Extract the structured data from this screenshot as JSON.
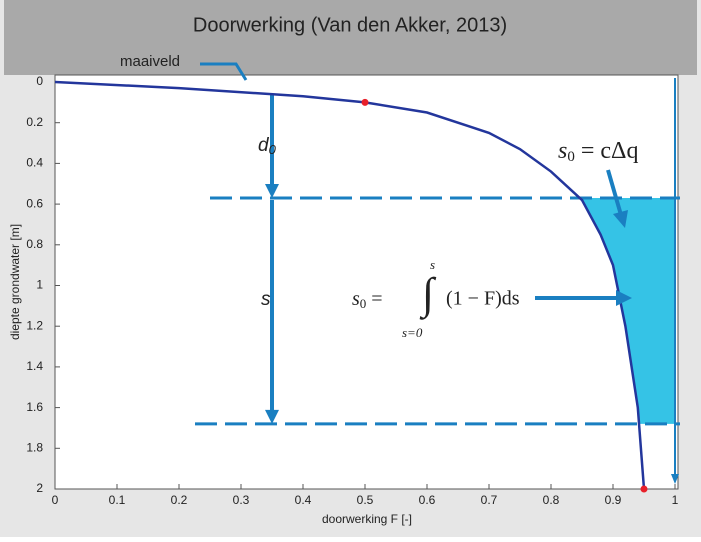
{
  "chart_data": {
    "type": "line",
    "title": "Doorwerking (Van den Akker, 2013)",
    "xlabel": "doorwerking F [-]",
    "ylabel": "diepte grondwater [m]",
    "xlim": [
      0,
      1
    ],
    "ylim": [
      0,
      2
    ],
    "y_inverted": true,
    "xticks": [
      0,
      0.1,
      0.2,
      0.3,
      0.4,
      0.5,
      0.6,
      0.7,
      0.8,
      0.9,
      1
    ],
    "yticks": [
      0,
      0.2,
      0.4,
      0.6,
      0.8,
      1,
      1.2,
      1.4,
      1.6,
      1.8,
      2
    ],
    "series": [
      {
        "type": "line",
        "color": "#23369c",
        "x": [
          0,
          0.2,
          0.4,
          0.5,
          0.6,
          0.7,
          0.75,
          0.8,
          0.85,
          0.88,
          0.9,
          0.92,
          0.94,
          0.95
        ],
        "values": [
          0,
          0.03,
          0.07,
          0.1,
          0.15,
          0.25,
          0.33,
          0.44,
          0.58,
          0.75,
          0.9,
          1.2,
          1.6,
          2
        ]
      },
      {
        "type": "scatter",
        "color": "#e8202a",
        "x": [
          0.5,
          0.95
        ],
        "values": [
          0.1,
          2
        ]
      }
    ],
    "band": [
      0.57,
      1.68
    ],
    "band_color": "#35c3e6",
    "annotations": {
      "surface": "maaiveld",
      "d0": {
        "base": "d",
        "sub": "0"
      },
      "s": "s",
      "formula1": {
        "base": "s",
        "sub": "0",
        "rest": " = cΔq"
      },
      "formula2": {
        "base": "s",
        "sub": "0",
        "eq": " =",
        "integral": "∫",
        "upper": "s",
        "lower": "s=0",
        "rest": "(1 − F)ds"
      }
    }
  }
}
